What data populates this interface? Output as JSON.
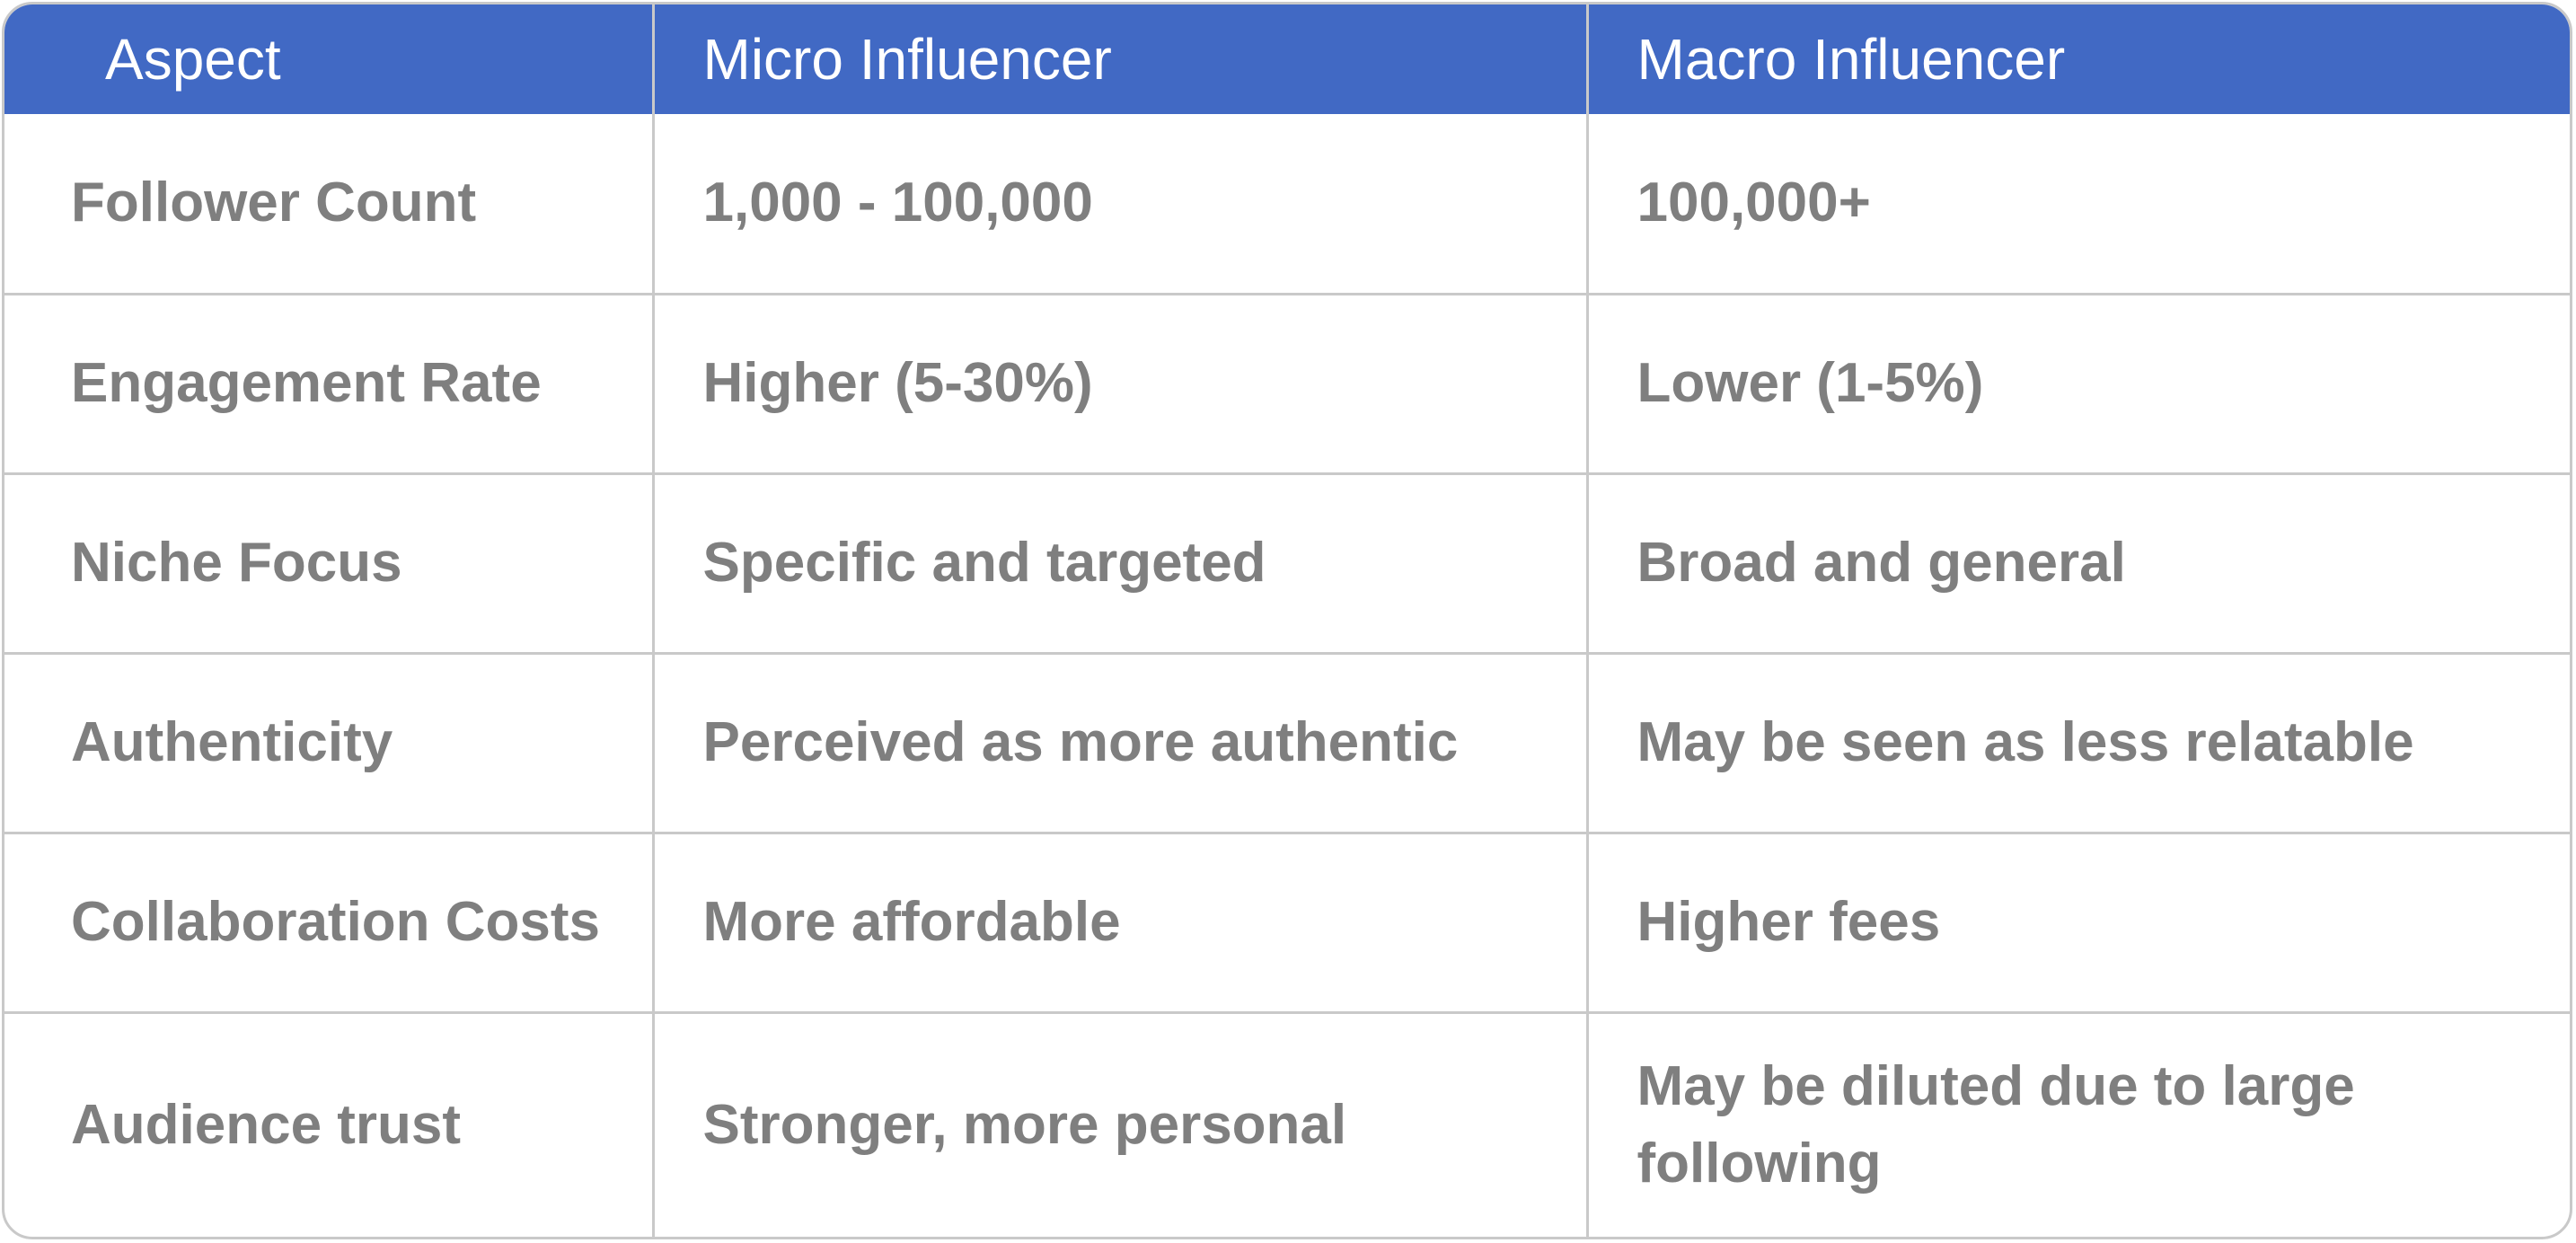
{
  "table": {
    "headers": [
      "Aspect",
      "Micro Influencer",
      "Macro Influencer"
    ],
    "rows": [
      [
        "Follower Count",
        "1,000 - 100,000",
        "100,000+"
      ],
      [
        "Engagement Rate",
        "Higher (5-30%)",
        "Lower (1-5%)"
      ],
      [
        "Niche Focus",
        "Specific and targeted",
        "Broad and general"
      ],
      [
        "Authenticity",
        "Perceived as more authentic",
        "May be seen as less relatable"
      ],
      [
        "Collaboration Costs",
        "More affordable",
        "Higher fees"
      ],
      [
        "Audience trust",
        "Stronger, more personal",
        "May be diluted due to large following"
      ]
    ]
  },
  "colors": {
    "header_background": "#4169c4",
    "header_text": "#ffffff",
    "body_text": "#7f7f7f",
    "grid_lines": "#c9c9c9"
  }
}
